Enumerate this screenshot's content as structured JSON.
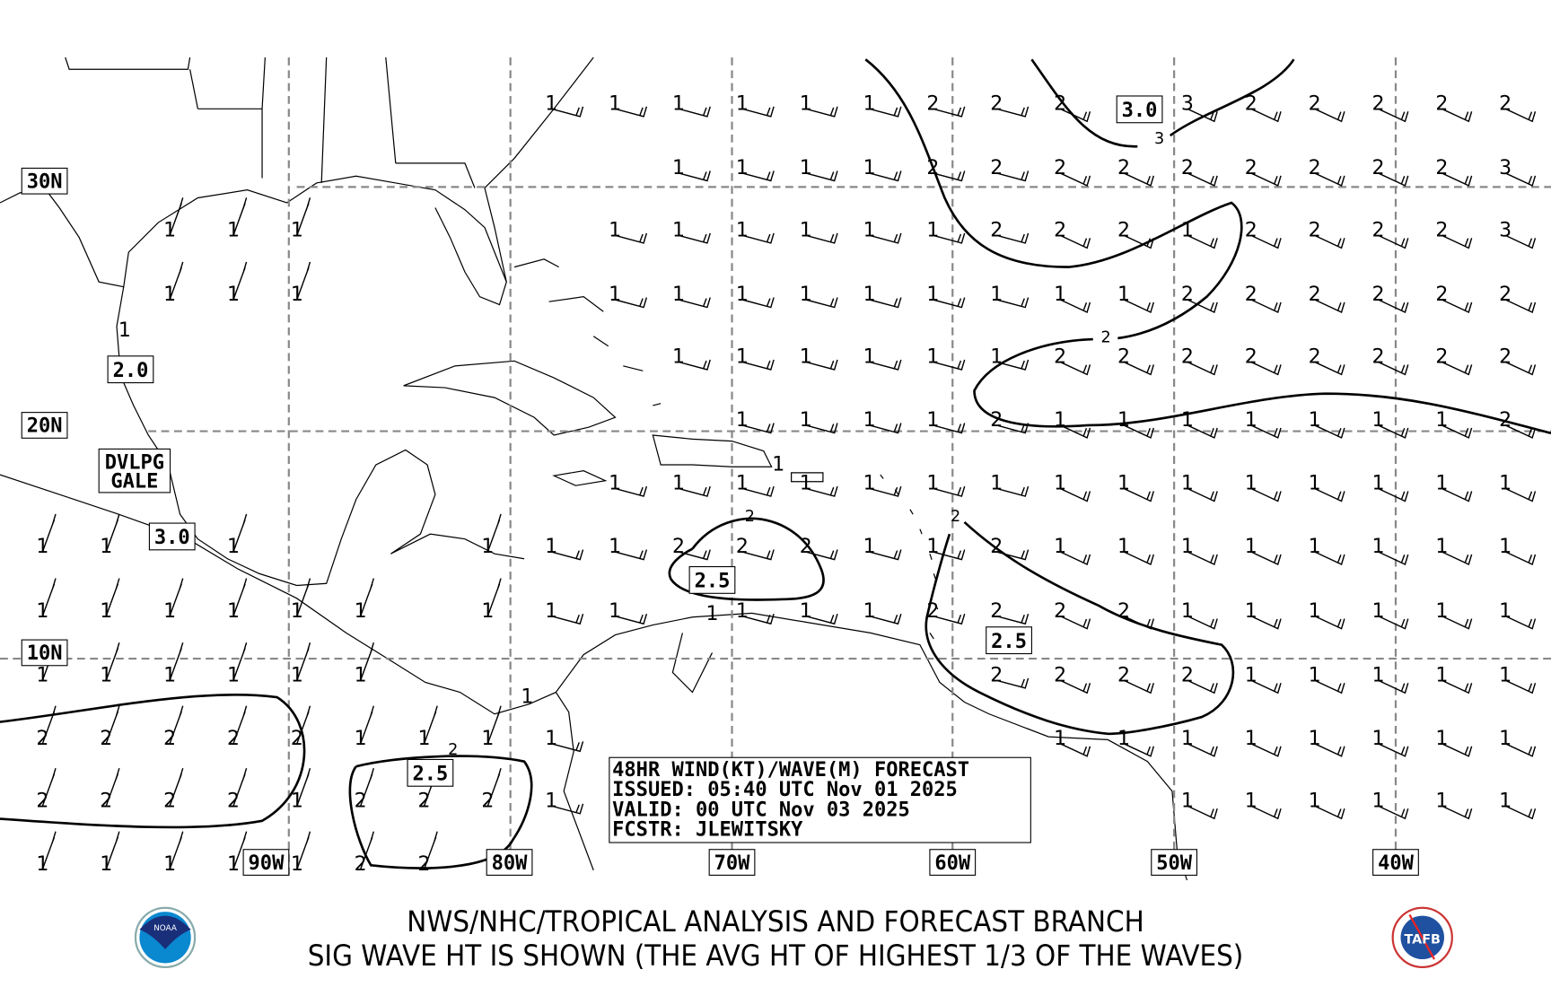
{
  "info_box": {
    "line1": "48HR WIND(KT)/WAVE(M) FORECAST",
    "line2": "ISSUED: 05:40 UTC Nov 01 2025",
    "line3": "VALID: 00 UTC Nov 03 2025",
    "line4": "FCSTR: JLEWITSKY"
  },
  "footer": {
    "line1": "NWS/NHC/TROPICAL ANALYSIS AND FORECAST BRANCH",
    "line2": "SIG WAVE HT IS SHOWN (THE AVG HT OF HIGHEST 1/3 OF THE WAVES)"
  },
  "logos": {
    "left": "NOAA",
    "right": "TAFB"
  },
  "lat_labels": [
    "30N",
    "20N",
    "10N"
  ],
  "lon_labels": [
    "90W",
    "80W",
    "70W",
    "60W",
    "50W",
    "40W"
  ],
  "contour_boxes": [
    "3.0",
    "2.0",
    "2.5",
    "2.5",
    "2.5",
    "3.0"
  ],
  "warning_label": {
    "line1": "DVLPG",
    "line2": "GALE"
  },
  "contour_values": [
    "3",
    "2",
    "2",
    "2",
    "2"
  ],
  "wave_grid": {
    "rows": [
      [
        null,
        null,
        null,
        null,
        null,
        null,
        null,
        null,
        "1",
        "1",
        "1",
        "1",
        "1",
        "1",
        "2",
        "2",
        "2",
        null,
        "3",
        "2",
        "2",
        "2",
        "2",
        "2"
      ],
      [
        null,
        null,
        null,
        null,
        null,
        null,
        null,
        null,
        null,
        null,
        "1",
        "1",
        "1",
        "1",
        "2",
        "2",
        "2",
        "2",
        "2",
        "2",
        "2",
        "2",
        "2",
        "3"
      ],
      [
        null,
        null,
        "1",
        "1",
        "1",
        null,
        null,
        null,
        null,
        "1",
        "1",
        "1",
        "1",
        "1",
        "1",
        "2",
        "2",
        "2",
        "1",
        "2",
        "2",
        "2",
        "2",
        "3"
      ],
      [
        null,
        null,
        "1",
        "1",
        "1",
        null,
        null,
        null,
        null,
        "1",
        "1",
        "1",
        "1",
        "1",
        "1",
        "1",
        "1",
        "1",
        "2",
        "2",
        "2",
        "2",
        "2",
        "2"
      ],
      [
        null,
        null,
        null,
        null,
        null,
        null,
        null,
        null,
        null,
        null,
        "1",
        "1",
        "1",
        "1",
        "1",
        "1",
        "2",
        "2",
        "2",
        "2",
        "2",
        "2",
        "2",
        "2"
      ],
      [
        null,
        null,
        null,
        null,
        null,
        null,
        null,
        null,
        null,
        null,
        null,
        "1",
        "1",
        "1",
        "1",
        "2",
        "1",
        "1",
        "1",
        "1",
        "1",
        "1",
        "1",
        "2"
      ],
      [
        null,
        null,
        null,
        null,
        null,
        null,
        null,
        null,
        null,
        "1",
        "1",
        "1",
        "1",
        "1",
        "1",
        "1",
        "1",
        "1",
        "1",
        "1",
        "1",
        "1",
        "1",
        "1"
      ],
      [
        "1",
        "1",
        null,
        "1",
        null,
        null,
        null,
        "1",
        "1",
        "1",
        "2",
        "2",
        "2",
        "1",
        "1",
        "2",
        "1",
        "1",
        "1",
        "1",
        "1",
        "1",
        "1",
        "1"
      ],
      [
        "1",
        "1",
        "1",
        "1",
        "1",
        "1",
        null,
        "1",
        "1",
        "1",
        null,
        "1",
        "1",
        "1",
        "2",
        "2",
        "2",
        "2",
        "1",
        "1",
        "1",
        "1",
        "1",
        "1"
      ],
      [
        "1",
        "1",
        "1",
        "1",
        "1",
        "1",
        null,
        null,
        null,
        null,
        null,
        null,
        null,
        null,
        null,
        "2",
        "2",
        "2",
        "2",
        "1",
        "1",
        "1",
        "1",
        "1"
      ],
      [
        "2",
        "2",
        "2",
        "2",
        "2",
        "1",
        "1",
        "1",
        "1",
        null,
        null,
        null,
        null,
        null,
        null,
        null,
        "1",
        "1",
        "1",
        "1",
        "1",
        "1",
        "1",
        "1"
      ],
      [
        "2",
        "2",
        "2",
        "2",
        "1",
        "2",
        "2",
        "2",
        "1",
        null,
        null,
        null,
        null,
        null,
        null,
        null,
        null,
        null,
        "1",
        "1",
        "1",
        "1",
        "1",
        "1"
      ],
      [
        "1",
        "1",
        "1",
        "1",
        "1",
        "2",
        "2",
        null,
        null,
        null,
        null,
        null,
        null,
        null,
        null,
        null,
        null,
        null,
        null,
        null,
        null,
        null,
        null,
        null
      ]
    ],
    "extra": [
      "1",
      "1",
      "1",
      "1"
    ]
  }
}
